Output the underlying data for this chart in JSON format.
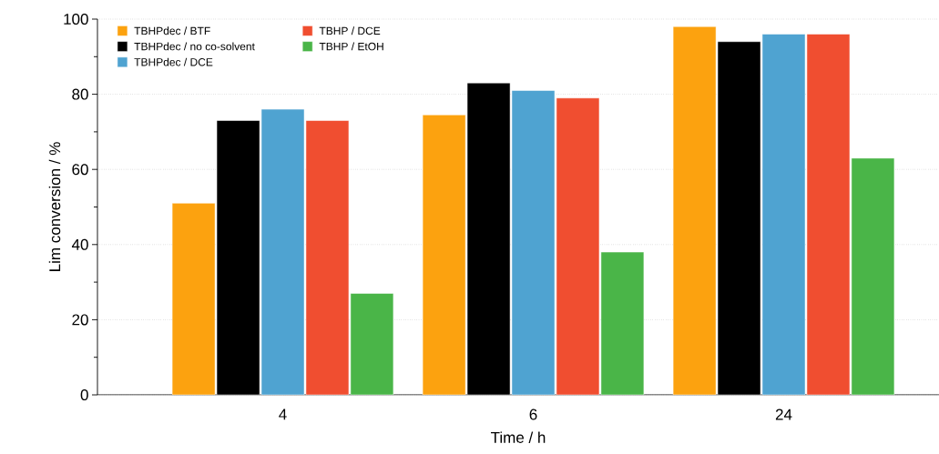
{
  "chart_data": {
    "type": "bar",
    "xlabel": "Time / h",
    "ylabel": "Lim conversion / %",
    "categories": [
      "4",
      "6",
      "24"
    ],
    "series": [
      {
        "name": "TBHPdec / BTF",
        "color": "#fca20f",
        "values": [
          51,
          74.5,
          98
        ]
      },
      {
        "name": "TBHPdec / no co-solvent",
        "color": "#000000",
        "values": [
          73,
          83,
          94
        ]
      },
      {
        "name": "TBHPdec / DCE",
        "color": "#4fa3d1",
        "values": [
          76,
          81,
          96
        ]
      },
      {
        "name": "TBHP / DCE",
        "color": "#f04e30",
        "values": [
          73,
          79,
          96
        ]
      },
      {
        "name": "TBHP / EtOH",
        "color": "#4ab548",
        "values": [
          27,
          38,
          63
        ]
      }
    ],
    "ylim": [
      0,
      100
    ],
    "yticks": [
      0,
      20,
      40,
      60,
      80,
      100
    ],
    "grid": "y",
    "legend": "top left"
  }
}
